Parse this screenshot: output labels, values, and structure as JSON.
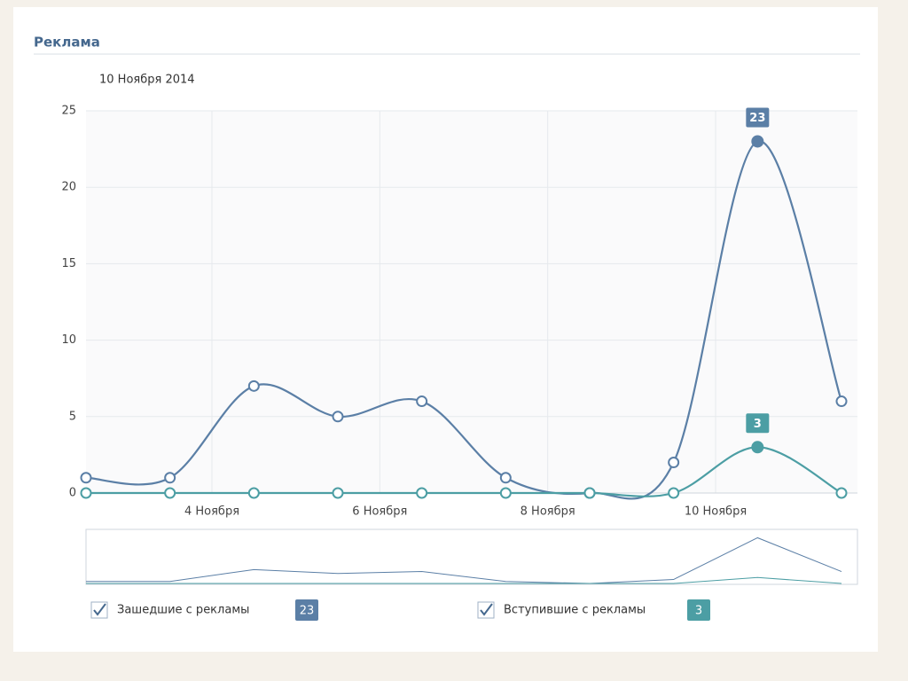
{
  "chart_data": {
    "type": "line",
    "title": "Реклама",
    "subtitle": "10 Ноября 2014",
    "categories": [
      null,
      "4 Ноября",
      null,
      "6 Ноября",
      null,
      "8 Ноября",
      null,
      "10 Ноября",
      null,
      null
    ],
    "series": [
      {
        "name": "Зашедшие с рекламы",
        "color": "#5b7fa6",
        "values": [
          1,
          1,
          7,
          5,
          6,
          1,
          0,
          2,
          23,
          6
        ]
      },
      {
        "name": "Вступившие с рекламы",
        "color": "#4c9ea4",
        "values": [
          0,
          0,
          0,
          0,
          0,
          0,
          0,
          0,
          3,
          0
        ]
      }
    ],
    "selected": 8,
    "ylim": [
      0,
      25
    ],
    "yticks": [
      0,
      5,
      10,
      15,
      20,
      25
    ],
    "grid": true
  }
}
